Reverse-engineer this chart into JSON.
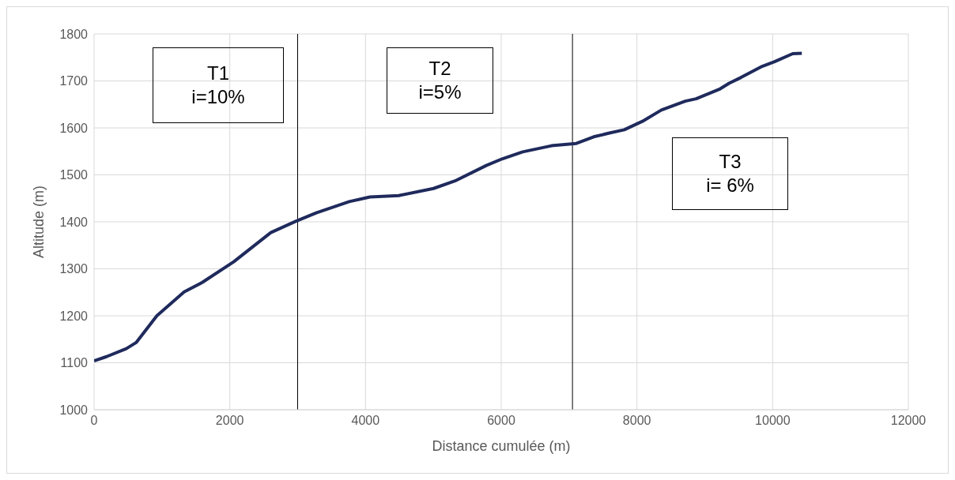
{
  "chart_data": {
    "type": "line",
    "xlabel": "Distance cumulée (m)",
    "ylabel": "Altitude (m)",
    "x": [
      0,
      183,
      475,
      620,
      925,
      1327,
      1594,
      2057,
      2604,
      2970,
      3274,
      3760,
      4065,
      4491,
      5002,
      5318,
      5780,
      6012,
      6316,
      6742,
      7107,
      7363,
      7594,
      7813,
      8081,
      8360,
      8713,
      8872,
      9212,
      9358,
      9529,
      9845,
      10028,
      10296,
      10430
    ],
    "series": [
      {
        "color": "#1f2a5c",
        "values": [
          1104,
          1113,
          1130,
          1143,
          1200,
          1251,
          1271,
          1315,
          1377,
          1401,
          1419,
          1443,
          1453,
          1456,
          1471,
          1487,
          1520,
          1534,
          1549,
          1562,
          1567,
          1581,
          1589,
          1596,
          1614,
          1638,
          1657,
          1662,
          1682,
          1695,
          1707,
          1731,
          1741,
          1758,
          1759
        ]
      }
    ],
    "xlim": [
      0,
      12000
    ],
    "xticks": [
      0,
      2000,
      4000,
      6000,
      8000,
      10000,
      12000
    ],
    "ylim": [
      1000,
      1800
    ],
    "yticks": [
      1000,
      1100,
      1200,
      1300,
      1400,
      1500,
      1600,
      1700,
      1800
    ],
    "grid": true,
    "marker": "none",
    "line_style": "solid",
    "ref_lines": [
      {
        "axis": "x",
        "value": 3000,
        "color": "#000000"
      },
      {
        "axis": "x",
        "value": 7050,
        "color": "#000000"
      }
    ],
    "annotations": [
      "T1\ni=10%",
      "T2\ni=5%",
      "T3\ni= 6%"
    ]
  }
}
